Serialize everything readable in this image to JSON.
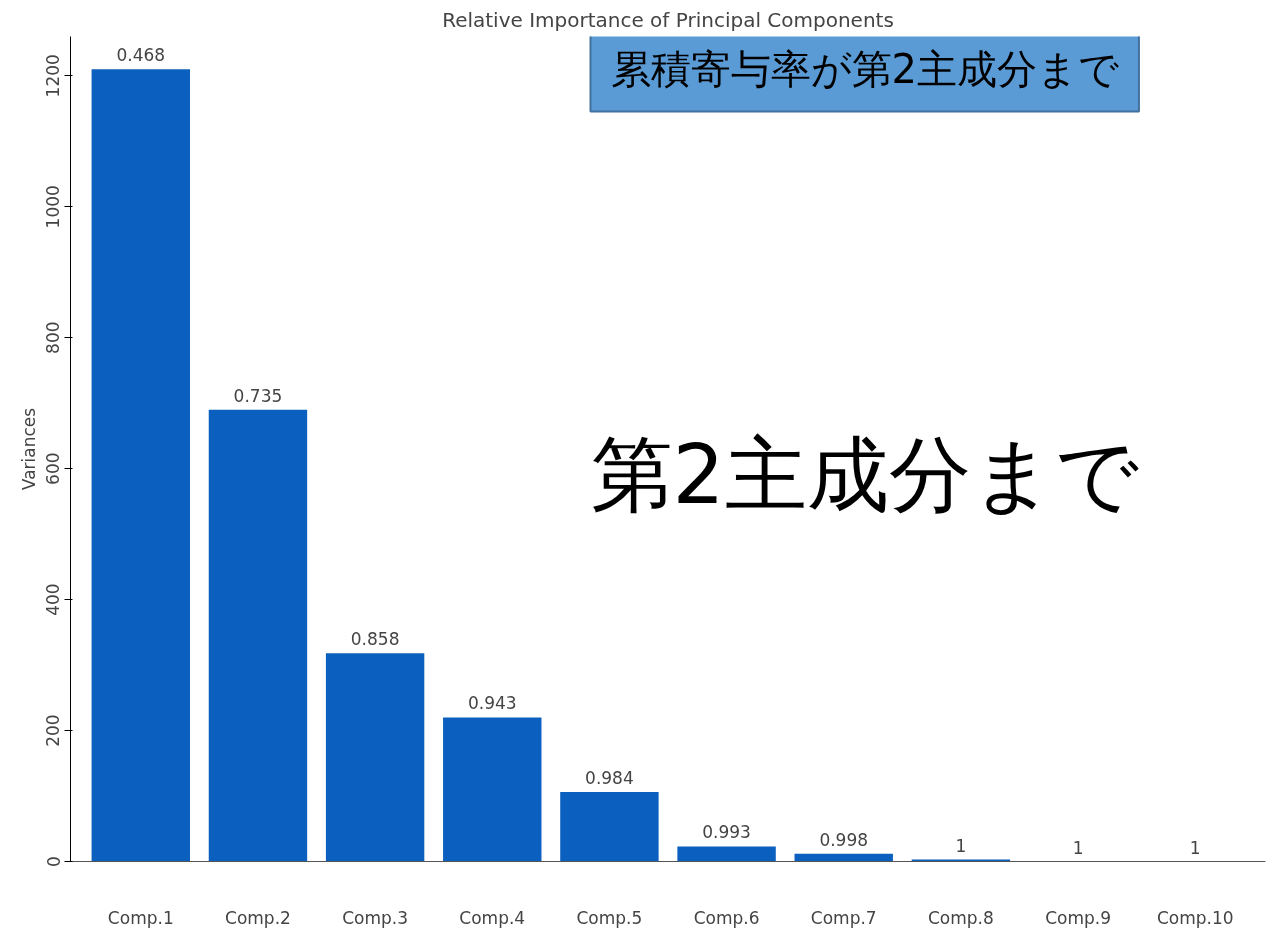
{
  "chart_data": {
    "type": "bar",
    "title": "Relative Importance of Principal Components",
    "ylabel": "Variances",
    "categories": [
      "Comp.1",
      "Comp.2",
      "Comp.3",
      "Comp.4",
      "Comp.5",
      "Comp.6",
      "Comp.7",
      "Comp.8",
      "Comp.9",
      "Comp.10"
    ],
    "values": [
      1210,
      690,
      318,
      220,
      106,
      23,
      12,
      3,
      0,
      0
    ],
    "color": "#0a5fbf",
    "ylim": [
      0,
      1260
    ],
    "yticks": [
      0,
      200,
      400,
      600,
      800,
      1000,
      1200
    ],
    "grid": false,
    "annotations": [
      "累積寄与率が第2主成分まで",
      "第2主成分まで",
      {
        "text": "0.468",
        "x": "Comp.1",
        "y": 1210
      },
      {
        "text": "0.735",
        "x": "Comp.2",
        "y": 690
      },
      {
        "text": "0.858",
        "x": "Comp.3",
        "y": 318
      },
      {
        "text": "0.943",
        "x": "Comp.4",
        "y": 220
      },
      {
        "text": "0.984",
        "x": "Comp.5",
        "y": 106
      },
      {
        "text": "0.993",
        "x": "Comp.6",
        "y": 23
      },
      {
        "text": "0.998",
        "x": "Comp.7",
        "y": 12
      },
      {
        "text": "1",
        "x": "Comp.8",
        "y": 3
      },
      {
        "text": "1",
        "x": "Comp.9",
        "y": 0
      },
      {
        "text": "1",
        "x": "Comp.10",
        "y": 0
      }
    ]
  }
}
